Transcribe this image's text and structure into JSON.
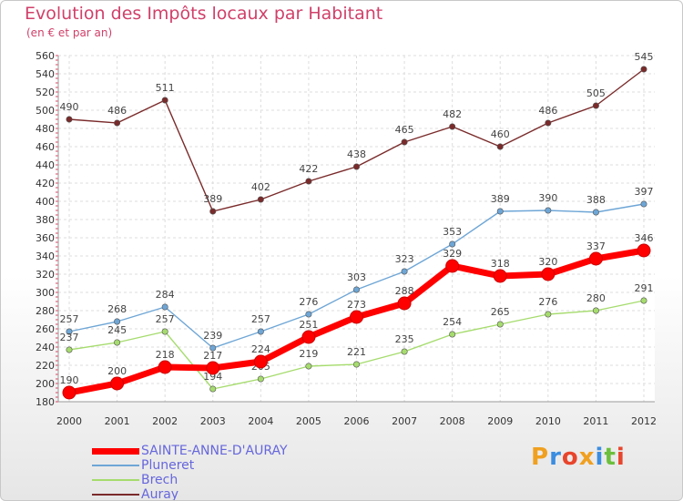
{
  "header": {
    "title": "Evolution des Impôts locaux par Habitant",
    "subtitle": "(en € et par an)"
  },
  "logo": {
    "letters": [
      "P",
      "r",
      "o",
      "x",
      "i",
      "t",
      "i"
    ],
    "colors": [
      "#f0a020",
      "#3a8de0",
      "#e8452c",
      "#f0a020",
      "#3a8de0",
      "#6cbf3c",
      "#e8452c"
    ]
  },
  "legend": [
    {
      "label": "SAINTE-ANNE-D'AURAY",
      "series": 0
    },
    {
      "label": "Pluneret",
      "series": 1
    },
    {
      "label": "Brech",
      "series": 2
    },
    {
      "label": "Auray",
      "series": 3
    }
  ],
  "chart_data": {
    "type": "line",
    "title": "Evolution des Impôts locaux par Habitant",
    "subtitle": "(en € et par an)",
    "xlabel": "",
    "ylabel": "",
    "x": [
      "2000",
      "2001",
      "2002",
      "2003",
      "2004",
      "2005",
      "2006",
      "2007",
      "2008",
      "2009",
      "2010",
      "2011",
      "2012"
    ],
    "ylim": [
      180,
      560
    ],
    "yticks": [
      180,
      200,
      220,
      240,
      260,
      280,
      300,
      320,
      340,
      360,
      380,
      400,
      420,
      440,
      460,
      480,
      500,
      520,
      540,
      560
    ],
    "grid": true,
    "legend_position": "bottom-left",
    "series": [
      {
        "name": "SAINTE-ANNE-D'AURAY",
        "color": "#ff0000",
        "values": [
          190,
          200,
          218,
          217,
          224,
          251,
          273,
          288,
          329,
          318,
          320,
          337,
          346
        ]
      },
      {
        "name": "Pluneret",
        "color": "#6ea6d6",
        "values": [
          257,
          268,
          284,
          239,
          257,
          276,
          303,
          323,
          353,
          389,
          390,
          388,
          397
        ]
      },
      {
        "name": "Brech",
        "color": "#a6dc6e",
        "values": [
          237,
          245,
          257,
          194,
          205,
          219,
          221,
          235,
          254,
          265,
          276,
          280,
          291
        ]
      },
      {
        "name": "Auray",
        "color": "#7a2a2a",
        "values": [
          490,
          486,
          511,
          389,
          402,
          422,
          438,
          465,
          482,
          460,
          486,
          505,
          545
        ]
      }
    ]
  }
}
